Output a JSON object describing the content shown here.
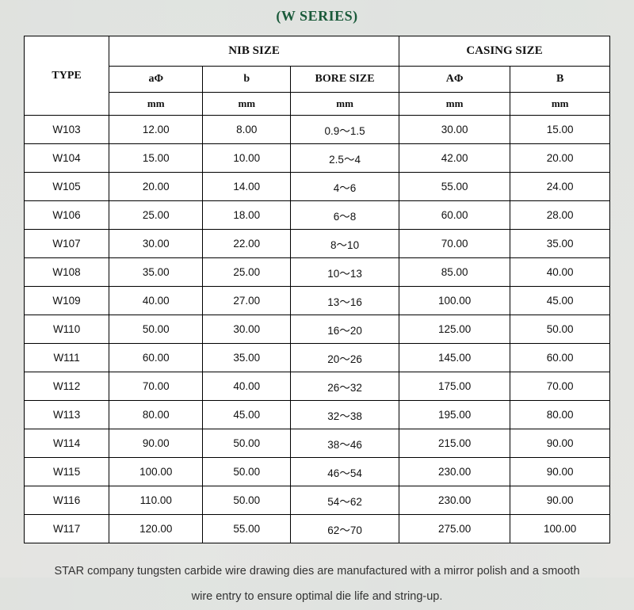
{
  "title": "(W SERIES)",
  "headers": {
    "type": "TYPE",
    "nib_group": "NIB SIZE",
    "casing_group": "CASING SIZE",
    "a_phi": "aΦ",
    "b": "b",
    "bore": "BORE SIZE",
    "A_phi": "AΦ",
    "B": "B",
    "unit": "mm"
  },
  "rows": [
    {
      "type": "W103",
      "a": "12.00",
      "b": "8.00",
      "bore": "0.9～1.5",
      "A": "30.00",
      "B": "15.00"
    },
    {
      "type": "W104",
      "a": "15.00",
      "b": "10.00",
      "bore": "2.5～4",
      "A": "42.00",
      "B": "20.00"
    },
    {
      "type": "W105",
      "a": "20.00",
      "b": "14.00",
      "bore": "4～6",
      "A": "55.00",
      "B": "24.00"
    },
    {
      "type": "W106",
      "a": "25.00",
      "b": "18.00",
      "bore": "6～8",
      "A": "60.00",
      "B": "28.00"
    },
    {
      "type": "W107",
      "a": "30.00",
      "b": "22.00",
      "bore": "8～10",
      "A": "70.00",
      "B": "35.00"
    },
    {
      "type": "W108",
      "a": "35.00",
      "b": "25.00",
      "bore": "10～13",
      "A": "85.00",
      "B": "40.00"
    },
    {
      "type": "W109",
      "a": "40.00",
      "b": "27.00",
      "bore": "13～16",
      "A": "100.00",
      "B": "45.00"
    },
    {
      "type": "W110",
      "a": "50.00",
      "b": "30.00",
      "bore": "16～20",
      "A": "125.00",
      "B": "50.00"
    },
    {
      "type": "W111",
      "a": "60.00",
      "b": "35.00",
      "bore": "20～26",
      "A": "145.00",
      "B": "60.00"
    },
    {
      "type": "W112",
      "a": "70.00",
      "b": "40.00",
      "bore": "26～32",
      "A": "175.00",
      "B": "70.00"
    },
    {
      "type": "W113",
      "a": "80.00",
      "b": "45.00",
      "bore": "32～38",
      "A": "195.00",
      "B": "80.00"
    },
    {
      "type": "W114",
      "a": "90.00",
      "b": "50.00",
      "bore": "38～46",
      "A": "215.00",
      "B": "90.00"
    },
    {
      "type": "W115",
      "a": "100.00",
      "b": "50.00",
      "bore": "46～54",
      "A": "230.00",
      "B": "90.00"
    },
    {
      "type": "W116",
      "a": "110.00",
      "b": "50.00",
      "bore": "54～62",
      "A": "230.00",
      "B": "90.00"
    },
    {
      "type": "W117",
      "a": "120.00",
      "b": "55.00",
      "bore": "62～70",
      "A": "275.00",
      "B": "100.00"
    }
  ],
  "footnote": "STAR company tungsten carbide wire drawing dies are manufactured with a mirror polish and a smooth wire entry to ensure optimal die life and string-up."
}
